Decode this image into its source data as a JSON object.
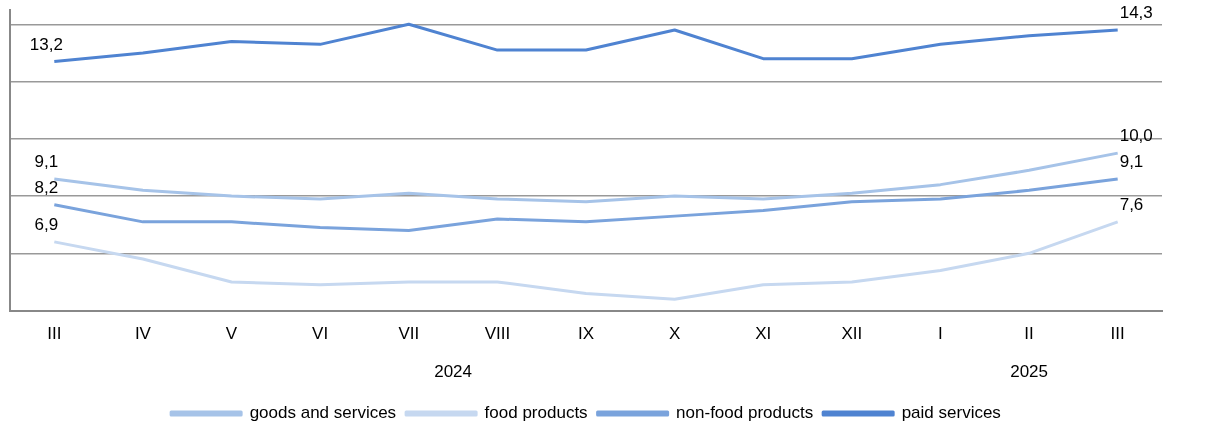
{
  "chart_data": {
    "type": "line",
    "categories": [
      "III",
      "IV",
      "V",
      "VI",
      "VII",
      "VIII",
      "IX",
      "X",
      "XI",
      "XII",
      "I",
      "II",
      "III"
    ],
    "series": [
      {
        "name": "goods and services",
        "color": "#a6c3e8",
        "values": [
          9.1,
          8.7,
          8.5,
          8.4,
          8.6,
          8.4,
          8.3,
          8.5,
          8.4,
          8.6,
          8.9,
          9.4,
          10.0
        ],
        "value_labels": [
          "9,1",
          null,
          null,
          null,
          null,
          null,
          null,
          null,
          null,
          null,
          null,
          null,
          "10,0"
        ]
      },
      {
        "name": "food products",
        "color": "#c6d8f0",
        "values": [
          6.9,
          6.3,
          5.5,
          5.4,
          5.5,
          5.5,
          5.1,
          4.9,
          5.4,
          5.5,
          5.9,
          6.5,
          7.6
        ],
        "value_labels": [
          "6,9",
          null,
          null,
          null,
          null,
          null,
          null,
          null,
          null,
          null,
          null,
          null,
          "7,6"
        ]
      },
      {
        "name": "non-food products",
        "color": "#7aa3dc",
        "values": [
          8.2,
          7.6,
          7.6,
          7.4,
          7.3,
          7.7,
          7.6,
          7.8,
          8.0,
          8.3,
          8.4,
          8.7,
          9.1
        ],
        "value_labels": [
          "8,2",
          null,
          null,
          null,
          null,
          null,
          null,
          null,
          null,
          null,
          null,
          null,
          "9,1"
        ]
      },
      {
        "name": "paid services",
        "color": "#4f83d1",
        "values": [
          13.2,
          13.5,
          13.9,
          13.8,
          14.5,
          13.6,
          13.6,
          14.3,
          13.3,
          13.3,
          13.8,
          14.1,
          14.3
        ],
        "value_labels": [
          "13,2",
          null,
          null,
          null,
          null,
          null,
          null,
          null,
          null,
          null,
          null,
          null,
          "14,3"
        ]
      }
    ],
    "ylim": [
      4.5,
      15
    ],
    "yticks": [
      {
        "value": 4.5,
        "label": null
      },
      {
        "value": 6.5,
        "label": null
      },
      {
        "value": 8.5,
        "label": null
      },
      {
        "value": 10.5,
        "label": null
      },
      {
        "value": 12.5,
        "label": null
      },
      {
        "value": 14.5,
        "label": null
      }
    ],
    "grid": "y",
    "tick_labels": "x",
    "legend": "bottom",
    "marker": "none",
    "line_style": "solid",
    "annotations": [
      "2024",
      "2025"
    ]
  }
}
